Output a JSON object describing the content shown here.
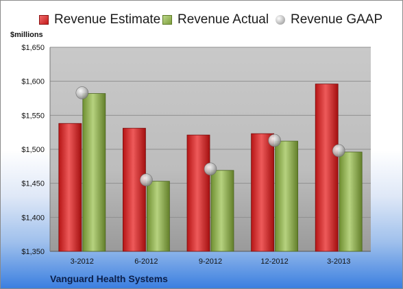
{
  "chart_data": {
    "type": "bar",
    "categories": [
      "3-2012",
      "6-2012",
      "9-2012",
      "12-2012",
      "3-2013"
    ],
    "series": [
      {
        "name": "Revenue Estimate",
        "kind": "bar",
        "color": "#d42a2a",
        "values": [
          1538,
          1531,
          1521,
          1523,
          1596
        ]
      },
      {
        "name": "Revenue Actual",
        "kind": "bar",
        "color": "#8fb04f",
        "values": [
          1582,
          1453,
          1469,
          1512,
          1496
        ]
      },
      {
        "name": "Revenue GAAP",
        "kind": "marker",
        "color": "#b0b0b0",
        "values": [
          1583,
          1455,
          1471,
          1513,
          1498
        ]
      }
    ],
    "ylabel": "$millions",
    "ylim": [
      1350,
      1650
    ],
    "yticks": [
      "$1,350",
      "$1,400",
      "$1,450",
      "$1,500",
      "$1,550",
      "$1,600",
      "$1,650"
    ],
    "ytick_values": [
      1350,
      1400,
      1450,
      1500,
      1550,
      1600,
      1650
    ],
    "grid": true,
    "legend_position": "top",
    "caption": "Vanguard Health Systems"
  }
}
